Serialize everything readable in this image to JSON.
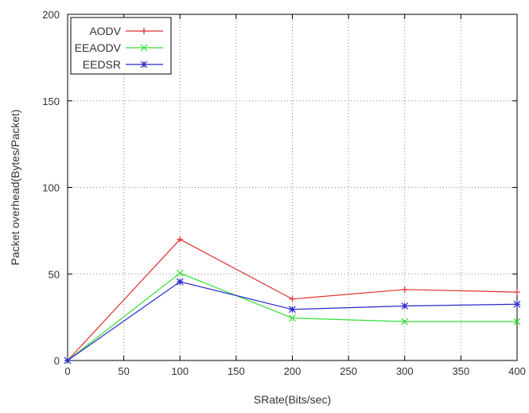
{
  "chart_data": {
    "type": "line",
    "title": "",
    "xlabel": "SRate(Bits/sec)",
    "ylabel": "Packet overhead(Bytes/Packet)",
    "xlim": [
      0,
      400
    ],
    "ylim": [
      0,
      200
    ],
    "xticks": [
      0,
      50,
      100,
      150,
      200,
      250,
      300,
      350,
      400
    ],
    "yticks": [
      0,
      50,
      100,
      150,
      200
    ],
    "grid": true,
    "legend_position": "top-left",
    "x": [
      0,
      100,
      200,
      300,
      400
    ],
    "series": [
      {
        "name": "AODV",
        "color": "#e03030",
        "marker": "plus",
        "values": [
          0,
          70,
          35.5,
          41,
          39.5
        ]
      },
      {
        "name": "EEAODV",
        "color": "#33dd33",
        "marker": "cross",
        "values": [
          0,
          50.5,
          24.5,
          22.5,
          22.5
        ]
      },
      {
        "name": "EEDSR",
        "color": "#2828cc",
        "marker": "star",
        "values": [
          0,
          45.5,
          29.5,
          31.5,
          32.5
        ]
      }
    ]
  }
}
